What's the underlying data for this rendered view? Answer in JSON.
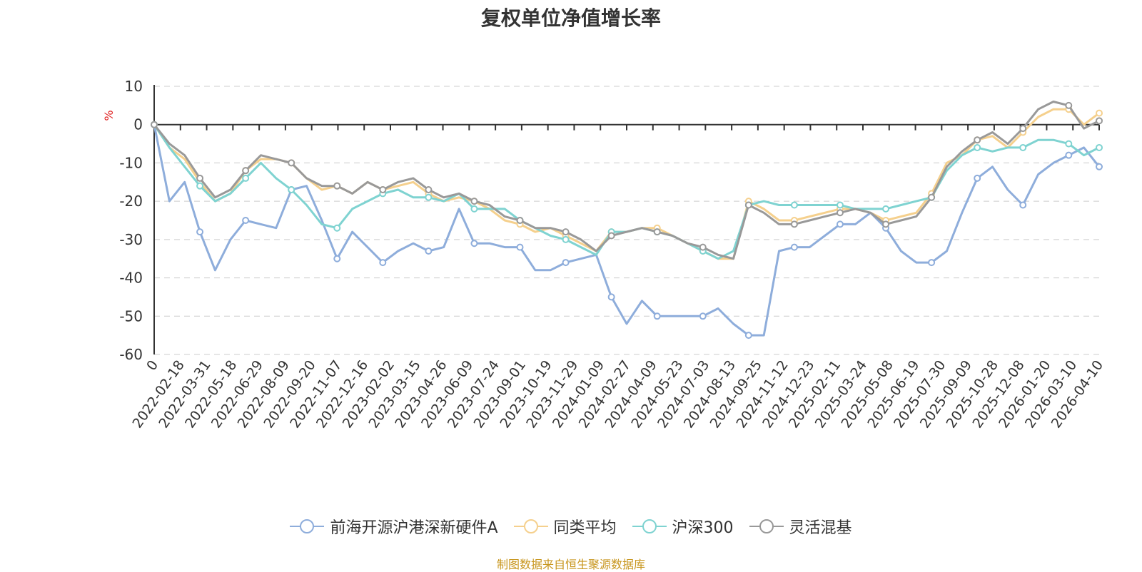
{
  "chart_data": {
    "type": "line",
    "title": "复权单位净值增长率",
    "ylabel": "%",
    "xlabel": "",
    "ylim": [
      -60,
      10
    ],
    "yticks": [
      10,
      0,
      -10,
      -20,
      -30,
      -40,
      -50,
      -60
    ],
    "x_tick_labels": [
      "0",
      "2022-02-18",
      "2022-03-31",
      "2022-05-18",
      "2022-06-29",
      "2022-08-09",
      "2022-09-20",
      "2022-11-07",
      "2022-12-16",
      "2023-02-02",
      "2023-03-15",
      "2023-04-26",
      "2023-06-09",
      "2023-07-24",
      "2023-09-01",
      "2023-10-19",
      "2023-11-29",
      "2024-01-09",
      "2024-02-27",
      "2024-04-09",
      "2024-05-23",
      "2024-07-03",
      "2024-08-13",
      "2024-09-25",
      "2024-11-12",
      "2024-12-23",
      "2025-02-11",
      "2025-03-24",
      "2025-05-08",
      "2025-06-19",
      "2025-07-30",
      "2025-09-09",
      "2025-10-28",
      "2025-12-08",
      "2026-01-20",
      "2026-03-10",
      "2026-04-10"
    ],
    "grid": "horizontal dashed",
    "legend_position": "bottom",
    "source": "制图数据来自恒生聚源数据库",
    "series": [
      {
        "name": "前海开源沪港深新硬件A",
        "color": "#8eaddb",
        "values": [
          0,
          -20,
          -15,
          -28,
          -38,
          -30,
          -25,
          -26,
          -27,
          -17,
          -16,
          -25,
          -35,
          -28,
          -32,
          -36,
          -33,
          -31,
          -33,
          -32,
          -22,
          -31,
          -31,
          -32,
          -32,
          -38,
          -38,
          -36,
          -35,
          -34,
          -45,
          -52,
          -46,
          -50,
          -50,
          -50,
          -50,
          -48,
          -52,
          -55,
          -55,
          -33,
          -32,
          -32,
          -29,
          -26,
          -26,
          -23,
          -27,
          -33,
          -36,
          -36,
          -33,
          -23,
          -14,
          -11,
          -17,
          -21,
          -13,
          -10,
          -8,
          -6,
          -11
        ]
      },
      {
        "name": "同类平均",
        "color": "#f5d08d",
        "values": [
          0,
          -6,
          -9,
          -15,
          -20,
          -18,
          -12,
          -9,
          -9,
          -10,
          -14,
          -17,
          -16,
          -18,
          -15,
          -17,
          -16,
          -15,
          -18,
          -20,
          -19,
          -20,
          -22,
          -25,
          -26,
          -28,
          -27,
          -29,
          -31,
          -33,
          -28,
          -28,
          -27,
          -27,
          -29,
          -31,
          -33,
          -35,
          -35,
          -20,
          -22,
          -25,
          -25,
          -24,
          -23,
          -22,
          -22,
          -23,
          -25,
          -24,
          -23,
          -18,
          -10,
          -8,
          -4,
          -3,
          -6,
          -2,
          2,
          4,
          4,
          0,
          3
        ]
      },
      {
        "name": "沪深300",
        "color": "#7fd3d1",
        "values": [
          0,
          -6,
          -11,
          -16,
          -20,
          -18,
          -14,
          -10,
          -14,
          -17,
          -21,
          -26,
          -27,
          -22,
          -20,
          -18,
          -17,
          -19,
          -19,
          -20,
          -18,
          -22,
          -22,
          -22,
          -25,
          -27,
          -29,
          -30,
          -32,
          -34,
          -28,
          -28,
          -27,
          -28,
          -29,
          -31,
          -33,
          -35,
          -33,
          -21,
          -20,
          -21,
          -21,
          -21,
          -21,
          -21,
          -22,
          -22,
          -22,
          -21,
          -20,
          -19,
          -12,
          -8,
          -6,
          -7,
          -6,
          -6,
          -4,
          -4,
          -5,
          -8,
          -6
        ]
      },
      {
        "name": "灵活混基",
        "color": "#999999",
        "values": [
          0,
          -5,
          -8,
          -14,
          -19,
          -17,
          -12,
          -8,
          -9,
          -10,
          -14,
          -16,
          -16,
          -18,
          -15,
          -17,
          -15,
          -14,
          -17,
          -19,
          -18,
          -20,
          -21,
          -24,
          -25,
          -27,
          -27,
          -28,
          -30,
          -33,
          -29,
          -28,
          -27,
          -28,
          -29,
          -31,
          -32,
          -34,
          -35,
          -21,
          -23,
          -26,
          -26,
          -25,
          -24,
          -23,
          -22,
          -23,
          -26,
          -25,
          -24,
          -19,
          -11,
          -7,
          -4,
          -2,
          -5,
          -1,
          4,
          6,
          5,
          -1,
          1
        ]
      }
    ]
  }
}
